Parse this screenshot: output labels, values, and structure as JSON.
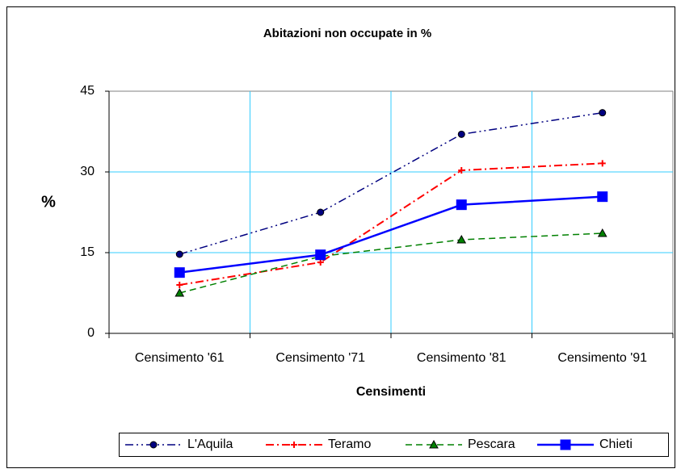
{
  "chart_data": {
    "type": "line",
    "title": "Abitazioni non occupate in %",
    "x_label": "Censimenti",
    "y_label": "%",
    "categories": [
      "Censimento '61",
      "Censimento '71",
      "Censimento '81",
      "Censimento '91"
    ],
    "series": [
      {
        "name": "L'Aquila",
        "color": "#000080",
        "marker": "circle",
        "values": [
          14.7,
          22.5,
          37.0,
          41.0
        ]
      },
      {
        "name": "Teramo",
        "color": "#ff0000",
        "marker": "plus",
        "values": [
          9.0,
          13.2,
          30.3,
          31.6
        ]
      },
      {
        "name": "Pescara",
        "color": "#008000",
        "marker": "triangle",
        "values": [
          7.5,
          14.3,
          17.4,
          18.6
        ]
      },
      {
        "name": "Chieti",
        "color": "#0000ff",
        "marker": "square",
        "values": [
          11.3,
          14.6,
          23.9,
          25.4
        ]
      }
    ],
    "ylim": [
      0,
      45
    ],
    "yticks": [
      0,
      15,
      30,
      45
    ],
    "grid": true,
    "legend": "bottom"
  }
}
